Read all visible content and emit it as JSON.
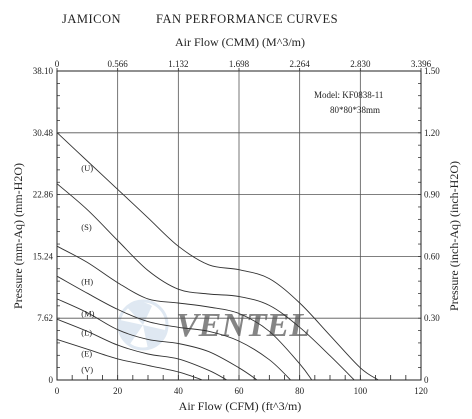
{
  "header": {
    "brand": "JAMICON",
    "title": "FAN PERFORMANCE CURVES"
  },
  "annotations": {
    "model": "Model: KF0838-11",
    "size": "80*80*38mm"
  },
  "watermark": "VENTEL",
  "colors": {
    "curve": "#333333",
    "grid": "#555555",
    "watermark": "#c5d7e8"
  },
  "chart_data": {
    "type": "line",
    "title": "FAN PERFORMANCE CURVES",
    "xlabel": "Air Flow (CFM) (ft^3/m)",
    "xlabel_top": "Air Flow (CMM) (M^3/m)",
    "ylabel": "Pressure (mm-Aq) (mm-H2O)",
    "ylabel_right": "Pressure (inch-Aq) (inch-H2O)",
    "xlim": [
      0,
      120
    ],
    "ylim": [
      0,
      38.1
    ],
    "x_ticks": [
      "0",
      "20",
      "40",
      "60",
      "80",
      "100",
      "120"
    ],
    "x_top_ticks": [
      "0",
      "0.566",
      "1.132",
      "1.698",
      "2.264",
      "2.830",
      "3.396"
    ],
    "y_ticks": [
      "0",
      "7.62",
      "15.24",
      "22.86",
      "30.48",
      "38.10"
    ],
    "y_right_ticks": [
      "0",
      "0.30",
      "0.60",
      "0.90",
      "1.20",
      "1.50"
    ],
    "grid": true,
    "series": [
      {
        "name": "(U)",
        "label_at": [
          8,
          25.8
        ],
        "x": [
          0,
          10,
          20,
          30,
          40,
          50,
          60,
          70,
          80,
          90,
          100,
          106
        ],
        "y": [
          30.5,
          27,
          23.5,
          20,
          16.5,
          14.2,
          13.6,
          12.5,
          9.5,
          5.5,
          1.5,
          0
        ]
      },
      {
        "name": "(S)",
        "label_at": [
          8,
          18.5
        ],
        "x": [
          0,
          10,
          20,
          30,
          40,
          50,
          60,
          70,
          80,
          90,
          98
        ],
        "y": [
          24.2,
          21,
          17.2,
          13.5,
          11.2,
          10.6,
          10.3,
          9.2,
          6.5,
          3,
          0
        ]
      },
      {
        "name": "(H)",
        "label_at": [
          8,
          11.8
        ],
        "x": [
          0,
          10,
          20,
          30,
          40,
          50,
          60,
          70,
          80,
          84
        ],
        "y": [
          16.5,
          14.5,
          12,
          10,
          9.5,
          9,
          8.2,
          6,
          2,
          0
        ]
      },
      {
        "name": "(M)",
        "label_at": [
          8,
          7.8
        ],
        "x": [
          0,
          10,
          20,
          30,
          40,
          50,
          60,
          70,
          77
        ],
        "y": [
          12.8,
          10.7,
          8.7,
          7.2,
          6.5,
          6,
          4.8,
          2.5,
          0
        ]
      },
      {
        "name": "(L)",
        "label_at": [
          8,
          5.5
        ],
        "x": [
          0,
          10,
          20,
          30,
          40,
          50,
          60,
          66
        ],
        "y": [
          10,
          8.3,
          6.2,
          5,
          4.5,
          3.5,
          1.5,
          0
        ]
      },
      {
        "name": "(E)",
        "label_at": [
          8,
          2.9
        ],
        "x": [
          0,
          10,
          20,
          30,
          40,
          50,
          56
        ],
        "y": [
          7.5,
          6,
          4.3,
          3.2,
          2.6,
          1.2,
          0
        ]
      },
      {
        "name": "(V)",
        "label_at": [
          8,
          0.9
        ],
        "x": [
          0,
          10,
          20,
          30,
          40,
          48
        ],
        "y": [
          5,
          3.8,
          2.6,
          1.8,
          1,
          0
        ]
      }
    ]
  }
}
